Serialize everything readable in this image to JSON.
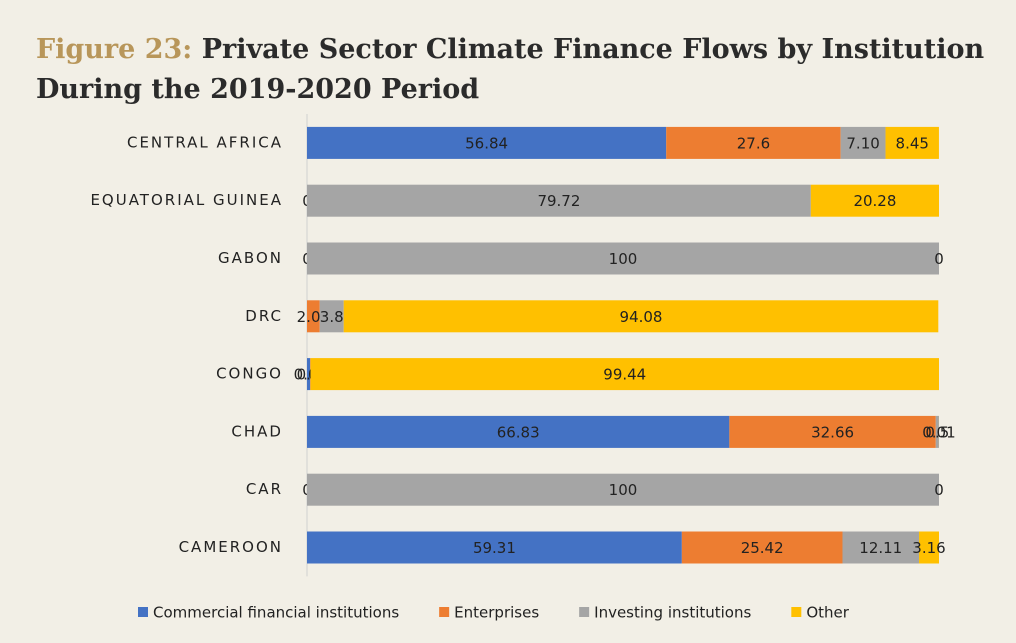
{
  "chart_data": {
    "type": "stacked_bar_horizontal",
    "figure_label": "Figure 23:",
    "title": "Private Sector Climate Finance Flows by Institution During the 2019-2020 Period",
    "categories": [
      "CENTRAL AFRICA",
      "EQUATORIAL GUINEA",
      "GABON",
      "DRC",
      "CONGO",
      "CHAD",
      "CAR",
      "CAMEROON"
    ],
    "xlim": [
      0,
      100
    ],
    "series": [
      {
        "name": "Commercial financial institutions",
        "color": "#4472c4",
        "values": [
          56.84,
          0,
          0,
          null,
          0.5,
          66.83,
          0,
          59.31
        ]
      },
      {
        "name": "Enterprises",
        "color": "#ed7d31",
        "values": [
          27.6,
          null,
          null,
          2.01,
          0.06,
          32.66,
          null,
          25.42
        ]
      },
      {
        "name": "Investing institutions",
        "color": "#a5a5a5",
        "values": [
          7.1,
          79.72,
          100,
          3.8,
          null,
          0.5,
          100,
          12.11
        ],
        "value_labels": [
          "7.10",
          "79.72",
          "100",
          "3.8",
          null,
          "0.5",
          "100",
          "12.11"
        ]
      },
      {
        "name": "Other",
        "color": "#ffc000",
        "values": [
          8.45,
          20.28,
          0,
          94.08,
          99.44,
          0.01,
          0,
          3.16
        ]
      }
    ],
    "legend": "bottom"
  }
}
